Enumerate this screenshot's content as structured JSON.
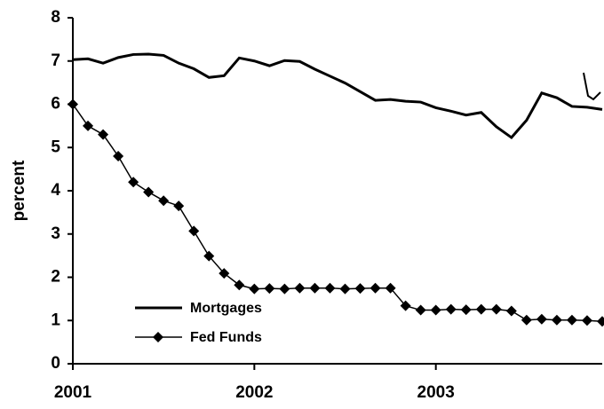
{
  "chart_data": {
    "type": "line",
    "y_label": "percent",
    "categories": [
      "2001",
      null,
      null,
      null,
      null,
      null,
      null,
      null,
      null,
      null,
      null,
      null,
      "2002",
      null,
      null,
      null,
      null,
      null,
      null,
      null,
      null,
      null,
      null,
      null,
      "2003",
      null,
      null,
      null,
      null,
      null,
      null,
      null,
      null,
      null,
      null,
      null
    ],
    "series": [
      {
        "name": "Mortgages",
        "color": "#000000",
        "marker": "none",
        "values": [
          7.03,
          7.05,
          6.95,
          7.08,
          7.15,
          7.16,
          7.13,
          6.95,
          6.82,
          6.62,
          6.66,
          7.07,
          7.0,
          6.89,
          7.01,
          6.99,
          6.81,
          6.65,
          6.49,
          6.29,
          6.09,
          6.11,
          6.07,
          6.05,
          5.92,
          5.84,
          5.75,
          5.81,
          5.48,
          5.23,
          5.63,
          6.26,
          6.15,
          5.95,
          5.93,
          5.88
        ]
      },
      {
        "name": "Fed Funds",
        "color": "#000000",
        "marker": "diamond",
        "values": [
          6.0,
          5.5,
          5.3,
          4.8,
          4.2,
          3.97,
          3.77,
          3.65,
          3.07,
          2.49,
          2.09,
          1.82,
          1.73,
          1.74,
          1.73,
          1.75,
          1.75,
          1.75,
          1.73,
          1.74,
          1.75,
          1.75,
          1.34,
          1.24,
          1.24,
          1.26,
          1.25,
          1.26,
          1.26,
          1.22,
          1.01,
          1.03,
          1.01,
          1.01,
          1.0,
          0.98
        ]
      }
    ],
    "ylim": [
      0,
      8
    ],
    "yticks": [
      0,
      1,
      2,
      3,
      4,
      5,
      6,
      7,
      8
    ],
    "grid": false,
    "legend": "lower left"
  }
}
